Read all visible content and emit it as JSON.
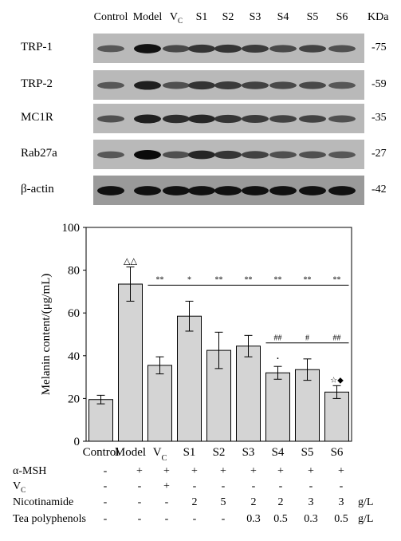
{
  "blot": {
    "lanes": [
      "Control",
      "Model",
      "V",
      "S1",
      "S2",
      "S3",
      "S4",
      "S5",
      "S6"
    ],
    "lane_vc_subscript": "C",
    "unit_header": "KDa",
    "rows": [
      {
        "name": "TRP-1",
        "mw": "-75",
        "intensity": [
          0.45,
          0.95,
          0.55,
          0.7,
          0.7,
          0.65,
          0.55,
          0.6,
          0.5
        ]
      },
      {
        "name": "TRP-2",
        "mw": "-59",
        "intensity": [
          0.45,
          0.85,
          0.5,
          0.7,
          0.65,
          0.6,
          0.55,
          0.55,
          0.45
        ]
      },
      {
        "name": "MC1R",
        "mw": "-35",
        "intensity": [
          0.5,
          0.85,
          0.75,
          0.8,
          0.7,
          0.65,
          0.6,
          0.6,
          0.5
        ]
      },
      {
        "name": "Rab27a",
        "mw": "-27",
        "intensity": [
          0.45,
          1.0,
          0.5,
          0.8,
          0.7,
          0.6,
          0.5,
          0.5,
          0.45
        ]
      },
      {
        "name": "β-actin",
        "mw": "-42",
        "intensity": [
          0.95,
          0.95,
          0.95,
          0.95,
          0.95,
          0.95,
          0.95,
          0.95,
          0.95
        ]
      }
    ]
  },
  "chart_data": {
    "type": "bar",
    "categories": [
      "Control",
      "Model",
      "V",
      "S1",
      "S2",
      "S3",
      "S4",
      "S5",
      "S6"
    ],
    "category_vc_subscript": "C",
    "values": [
      19.5,
      73.5,
      35.5,
      58.5,
      42.5,
      44.5,
      32,
      33.5,
      23
    ],
    "errors": [
      2,
      8,
      4,
      7,
      8.5,
      5,
      3,
      5,
      3
    ],
    "ylabel": "Melanin content/(μg/mL)",
    "xlabel": "",
    "ylim": [
      0,
      100
    ],
    "yticks": [
      "0",
      "20",
      "40",
      "60",
      "80",
      "100"
    ],
    "bar_color": "#d4d4d4",
    "annotations": {
      "model_mark": "△△",
      "star_marks": [
        "**",
        "*",
        "**",
        "**",
        "**",
        "**",
        "**"
      ],
      "hash_marks": [
        "##",
        "#",
        "##"
      ],
      "s4_mark": "·",
      "s6_mark": "☆◆"
    }
  },
  "treatment_table": {
    "rows": [
      {
        "label": "α-MSH",
        "values": [
          "-",
          "+",
          "+",
          "+",
          "+",
          "+",
          "+",
          "+",
          "+"
        ],
        "unit": ""
      },
      {
        "label": "V",
        "label_subscript": "C",
        "values": [
          "-",
          "-",
          "+",
          "-",
          "-",
          "-",
          "-",
          "-",
          "-"
        ],
        "unit": ""
      },
      {
        "label": "Nicotinamide",
        "values": [
          "-",
          "-",
          "-",
          "2",
          "5",
          "2",
          "2",
          "3",
          "3"
        ],
        "unit": "g/L"
      },
      {
        "label": "Tea polyphenols",
        "values": [
          "-",
          "-",
          "-",
          "-",
          "-",
          "0.3",
          "0.5",
          "0.3",
          "0.5"
        ],
        "unit": "g/L"
      }
    ]
  }
}
